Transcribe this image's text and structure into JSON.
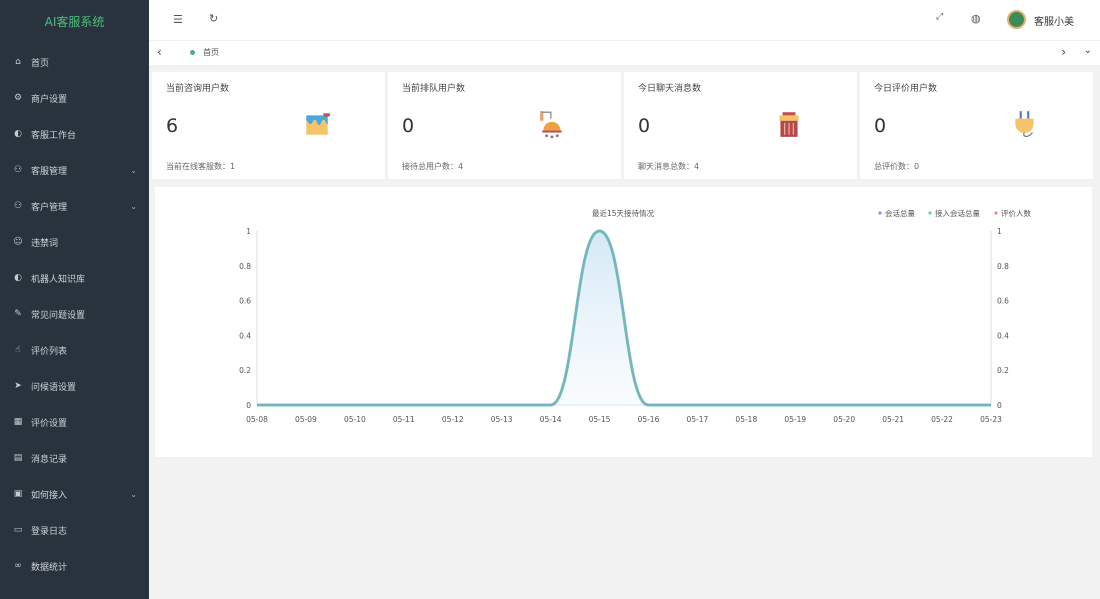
{
  "app": {
    "title": "AI客服系统"
  },
  "sidebar": {
    "items": [
      {
        "label": "首页",
        "icon": "home-icon",
        "glyph": "⌂"
      },
      {
        "label": "商户设置",
        "icon": "gear-icon",
        "glyph": "⚙"
      },
      {
        "label": "客服工作台",
        "icon": "headset-icon",
        "glyph": "◐"
      },
      {
        "label": "客服管理",
        "icon": "user-icon",
        "glyph": "⚇",
        "chev": "⌄"
      },
      {
        "label": "客户管理",
        "icon": "users-icon",
        "glyph": "⚇",
        "chev": "⌄"
      },
      {
        "label": "违禁词",
        "icon": "smile-icon",
        "glyph": "☺"
      },
      {
        "label": "机器人知识库",
        "icon": "robot-icon",
        "glyph": "◐"
      },
      {
        "label": "常见问题设置",
        "icon": "edit-icon",
        "glyph": "✎"
      },
      {
        "label": "评价列表",
        "icon": "thumb-icon",
        "glyph": "☝"
      },
      {
        "label": "问候语设置",
        "icon": "send-icon",
        "glyph": "➤"
      },
      {
        "label": "评价设置",
        "icon": "calendar-icon",
        "glyph": "▦"
      },
      {
        "label": "消息记录",
        "icon": "message-icon",
        "glyph": "▤"
      },
      {
        "label": "如何接入",
        "icon": "plug-icon",
        "glyph": "▣",
        "chev": "⌄"
      },
      {
        "label": "登录日志",
        "icon": "log-icon",
        "glyph": "▭"
      },
      {
        "label": "数据统计",
        "icon": "chart-icon",
        "glyph": "∞"
      }
    ]
  },
  "header": {
    "user": "客服小美"
  },
  "tabs": {
    "active": "首页"
  },
  "cards": [
    {
      "title": "当前咨询用户数",
      "value": "6",
      "footer": "当前在线客服数：1",
      "icon": "paint-bucket-icon"
    },
    {
      "title": "当前排队用户数",
      "value": "0",
      "footer": "接待总用户数：4",
      "icon": "shower-icon"
    },
    {
      "title": "今日聊天消息数",
      "value": "0",
      "footer": "聊天消息总数：4",
      "icon": "trash-icon"
    },
    {
      "title": "今日评价用户数",
      "value": "0",
      "footer": "总评价数：0",
      "icon": "plug-icon"
    }
  ],
  "chart_data": {
    "type": "line",
    "title": "最近15天接待情况",
    "categories": [
      "05-08",
      "05-09",
      "05-10",
      "05-11",
      "05-12",
      "05-13",
      "05-14",
      "05-15",
      "05-16",
      "05-17",
      "05-18",
      "05-19",
      "05-20",
      "05-21",
      "05-22",
      "05-23"
    ],
    "series": [
      {
        "name": "会话总量",
        "color": "#8d8cf0",
        "values": [
          0,
          0,
          0,
          0,
          0,
          0,
          0,
          1,
          0,
          0,
          0,
          0,
          0,
          0,
          0,
          0
        ]
      },
      {
        "name": "接入会话总量",
        "color": "#6dd0a4",
        "values": [
          0,
          0,
          0,
          0,
          0,
          0,
          0,
          1,
          0,
          0,
          0,
          0,
          0,
          0,
          0,
          0
        ]
      },
      {
        "name": "评价人数",
        "color": "#f0857a",
        "values": [
          0,
          0,
          0,
          0,
          0,
          0,
          0,
          0,
          0,
          0,
          0,
          0,
          0,
          0,
          0,
          0
        ]
      }
    ],
    "yticks": [
      "0",
      "0.2",
      "0.4",
      "0.6",
      "0.8",
      "1"
    ],
    "ylim": [
      0,
      1
    ],
    "legend": "top-right",
    "grid": false
  }
}
